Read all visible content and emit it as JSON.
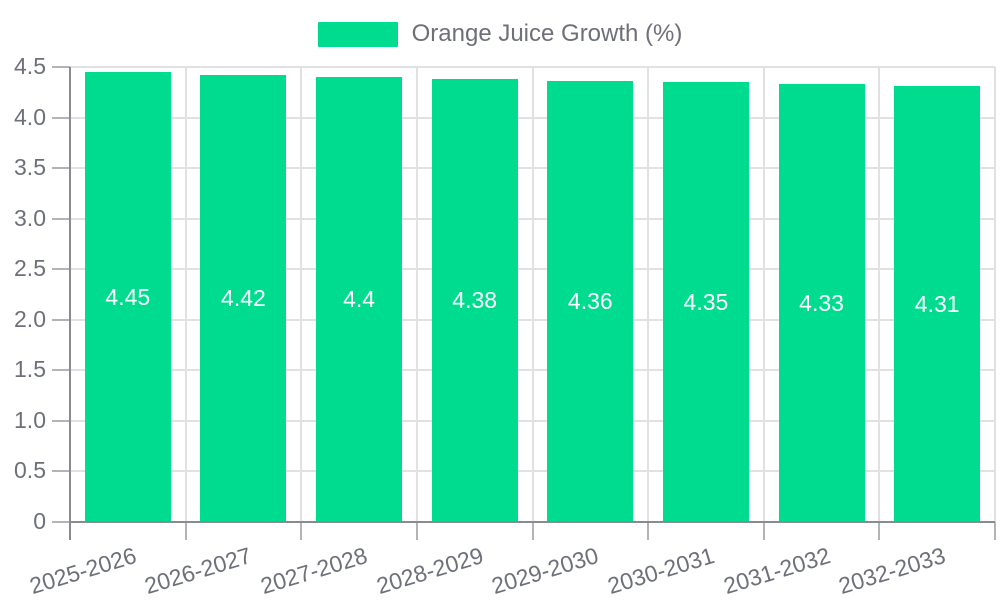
{
  "chart_data": {
    "type": "bar",
    "title": "",
    "series_name": "Orange Juice Growth (%)",
    "categories": [
      "2025-2026",
      "2026-2027",
      "2027-2028",
      "2028-2029",
      "2029-2030",
      "2030-2031",
      "2031-2032",
      "2032-2033"
    ],
    "values": [
      4.45,
      4.42,
      4.4,
      4.38,
      4.36,
      4.35,
      4.33,
      4.31
    ],
    "value_labels": [
      "4.45",
      "4.42",
      "4.4",
      "4.38",
      "4.36",
      "4.35",
      "4.33",
      "4.31"
    ],
    "xlabel": "",
    "ylabel": "",
    "ylim": [
      0,
      4.5
    ],
    "y_tick_values": [
      0,
      0.5,
      1.0,
      1.5,
      2.0,
      2.5,
      3.0,
      3.5,
      4.0,
      4.5
    ],
    "y_tick_labels": [
      "0",
      "0.5",
      "1.0",
      "1.5",
      "2.0",
      "2.5",
      "3.0",
      "3.5",
      "4.0",
      "4.5"
    ],
    "grid": true,
    "legend_position": "top",
    "colors": {
      "bar": "#00DC8F",
      "value_label": "#FFFFFF",
      "grid_line": "#E1E1E4",
      "tick_line": "#B4B4B8",
      "axis_line": "#898B90",
      "axis_text": "#6E7079",
      "legend_text": "#6E7079",
      "background": "#FFFFFF"
    }
  }
}
